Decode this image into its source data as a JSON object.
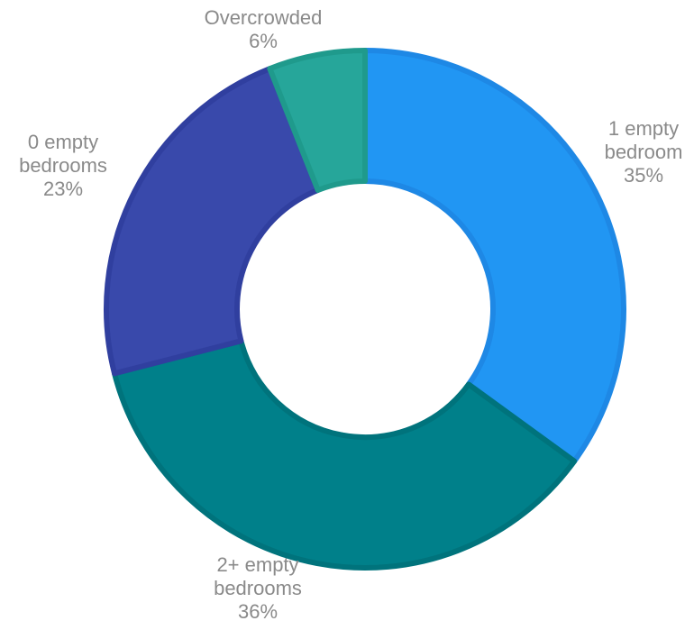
{
  "chart_data": {
    "type": "pie",
    "donut": true,
    "title": "",
    "legend": "none",
    "slices": [
      {
        "category": "1 empty bedroom",
        "label_lines": [
          "1 empty",
          "bedroom"
        ],
        "value": 35,
        "value_label": "35%",
        "color": "#2196F3",
        "border_color": "#1E88E5"
      },
      {
        "category": "2+ empty bedrooms",
        "label_lines": [
          "2+ empty",
          "bedrooms"
        ],
        "value": 36,
        "value_label": "36%",
        "color": "#00808A",
        "border_color": "#00737C"
      },
      {
        "category": "0 empty bedrooms",
        "label_lines": [
          "0 empty",
          "bedrooms"
        ],
        "value": 23,
        "value_label": "23%",
        "color": "#3949AB",
        "border_color": "#303F9F"
      },
      {
        "category": "Overcrowded",
        "label_lines": [
          "Overcrowded"
        ],
        "value": 6,
        "value_label": "6%",
        "color": "#26A69A",
        "border_color": "#1F9A8C"
      }
    ],
    "label_color": "#8a8a8a"
  }
}
